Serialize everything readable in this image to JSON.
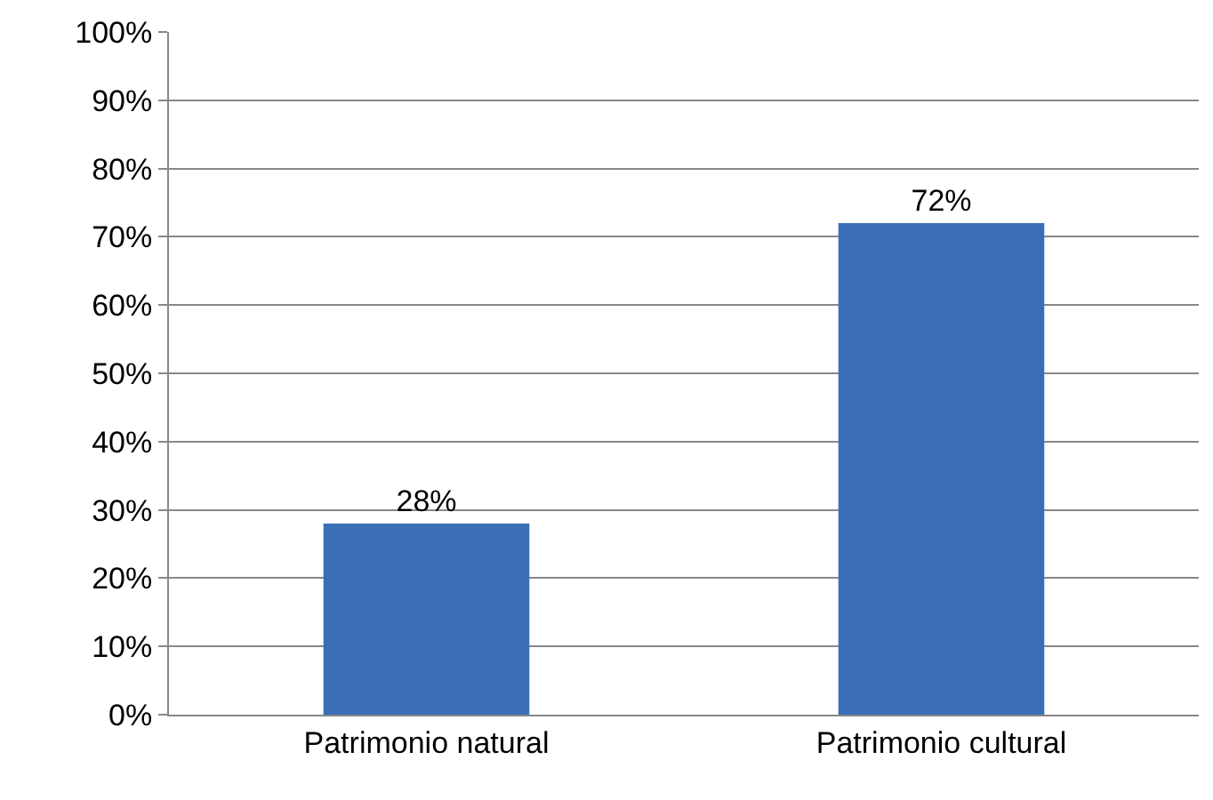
{
  "chart_data": {
    "type": "bar",
    "categories": [
      "Patrimonio natural",
      "Patrimonio cultural"
    ],
    "values": [
      28,
      72
    ],
    "color": "#3a6fb8",
    "value_labels": [
      "28%",
      "72%"
    ],
    "ylim": [
      0,
      100
    ],
    "yticks": [
      {
        "value": 0,
        "label": "0%"
      },
      {
        "value": 10,
        "label": "10%"
      },
      {
        "value": 20,
        "label": "20%"
      },
      {
        "value": 30,
        "label": "30%"
      },
      {
        "value": 40,
        "label": "40%"
      },
      {
        "value": 50,
        "label": "50%"
      },
      {
        "value": 60,
        "label": "60%"
      },
      {
        "value": 70,
        "label": "70%"
      },
      {
        "value": 80,
        "label": "80%"
      },
      {
        "value": 90,
        "label": "90%"
      },
      {
        "value": 100,
        "label": "100%"
      }
    ],
    "grid": "y"
  }
}
